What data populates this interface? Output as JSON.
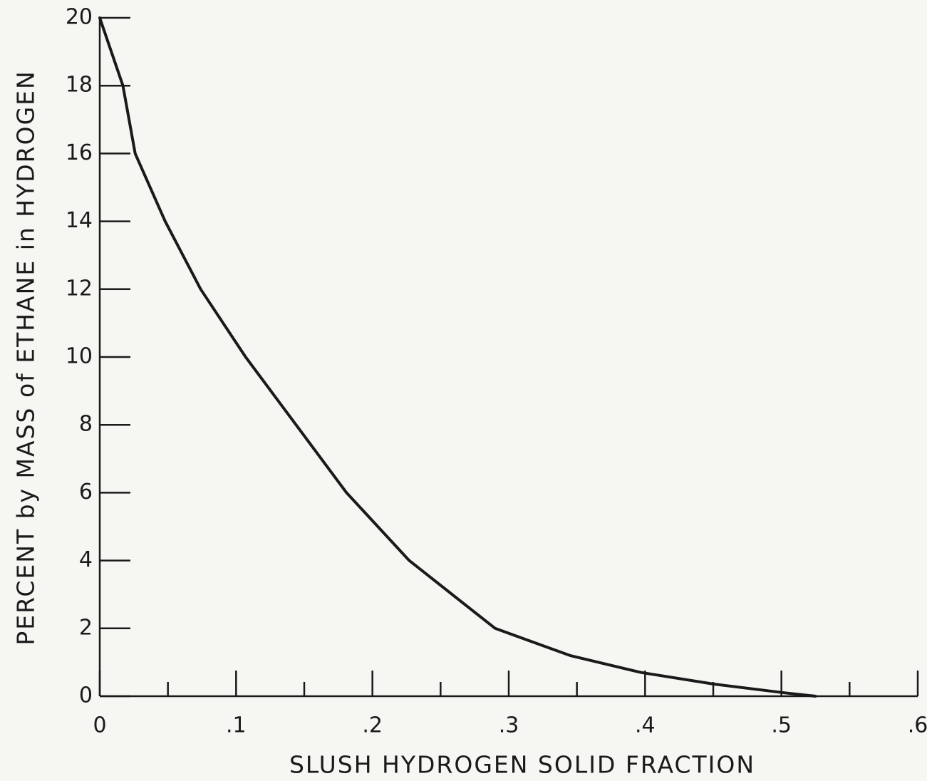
{
  "chart_data": {
    "type": "line",
    "xlabel": "SLUSH HYDROGEN SOLID FRACTION",
    "ylabel": "PERCENT by MASS of ETHANE in HYDROGEN",
    "x": [
      0,
      0.017,
      0.026,
      0.048,
      0.074,
      0.107,
      0.144,
      0.181,
      0.227,
      0.29,
      0.345,
      0.397,
      0.45,
      0.502,
      0.525
    ],
    "values": [
      20,
      18,
      16,
      14,
      12,
      10,
      8,
      6,
      4,
      2,
      1.2,
      0.7,
      0.36,
      0.1,
      0
    ],
    "color": "#1a1a1a",
    "xlim": [
      0,
      0.6
    ],
    "ylim": [
      0,
      20
    ],
    "xticks": [
      0,
      {
        "value": 0.1,
        "label": ".1"
      },
      {
        "value": 0.2,
        "label": ".2"
      },
      {
        "value": 0.3,
        "label": ".3"
      },
      {
        "value": 0.4,
        "label": ".4"
      },
      {
        "value": 0.5,
        "label": ".5"
      },
      {
        "value": 0.6,
        "label": ".6"
      }
    ],
    "xminorticks": [
      0.05,
      0.15,
      0.25,
      0.35,
      0.45,
      0.55
    ],
    "yticks": [
      0,
      2,
      4,
      6,
      8,
      10,
      12,
      14,
      16,
      18,
      20
    ]
  }
}
